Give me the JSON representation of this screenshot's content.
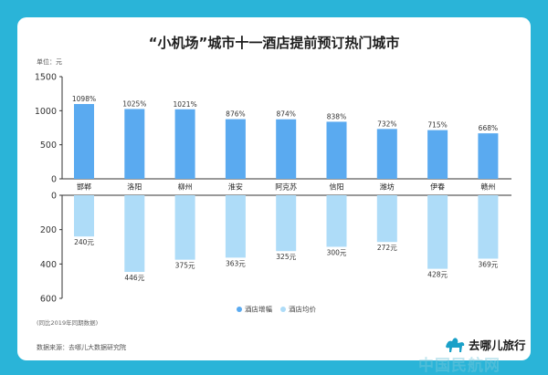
{
  "title": "“小机场”城市十一酒店提前预订热门城市",
  "unit_label": "单位：元",
  "note": "(同比2019年同期数据)",
  "source": "数据来源：去哪儿大数据研究院",
  "logo": {
    "text": "去哪儿旅行",
    "icon": "camel-logo-icon",
    "color": "#1aa0c8"
  },
  "watermark": "中国民航网",
  "colors": {
    "background": "#2ab4d8",
    "growth": "#5aaaf0",
    "price": "#aedcf8"
  },
  "chart_data": [
    {
      "type": "bar",
      "categories": [
        "邯郸",
        "洛阳",
        "柳州",
        "淮安",
        "阿克苏",
        "信阳",
        "潍坊",
        "伊春",
        "赣州"
      ],
      "series": [
        {
          "name": "酒店增幅",
          "values": [
            1098,
            1025,
            1021,
            876,
            874,
            838,
            732,
            715,
            668
          ],
          "labels": [
            "1098%",
            "1025%",
            "1021%",
            "876%",
            "874%",
            "838%",
            "732%",
            "715%",
            "668%"
          ]
        }
      ],
      "ylim": [
        0,
        1500
      ],
      "yticks": [
        "0",
        "500",
        "1000",
        "1500"
      ]
    },
    {
      "type": "bar",
      "categories": [
        "邯郸",
        "洛阳",
        "柳州",
        "淮安",
        "阿克苏",
        "信阳",
        "潍坊",
        "伊春",
        "赣州"
      ],
      "orientation": "downward",
      "series": [
        {
          "name": "酒店均价",
          "values": [
            240,
            446,
            375,
            363,
            325,
            300,
            272,
            428,
            369
          ],
          "labels": [
            "240元",
            "446元",
            "375元",
            "363元",
            "325元",
            "300元",
            "272元",
            "428元",
            "369元"
          ]
        }
      ],
      "ylim": [
        0,
        600
      ],
      "yticks": [
        "0",
        "200",
        "400",
        "600"
      ]
    }
  ]
}
